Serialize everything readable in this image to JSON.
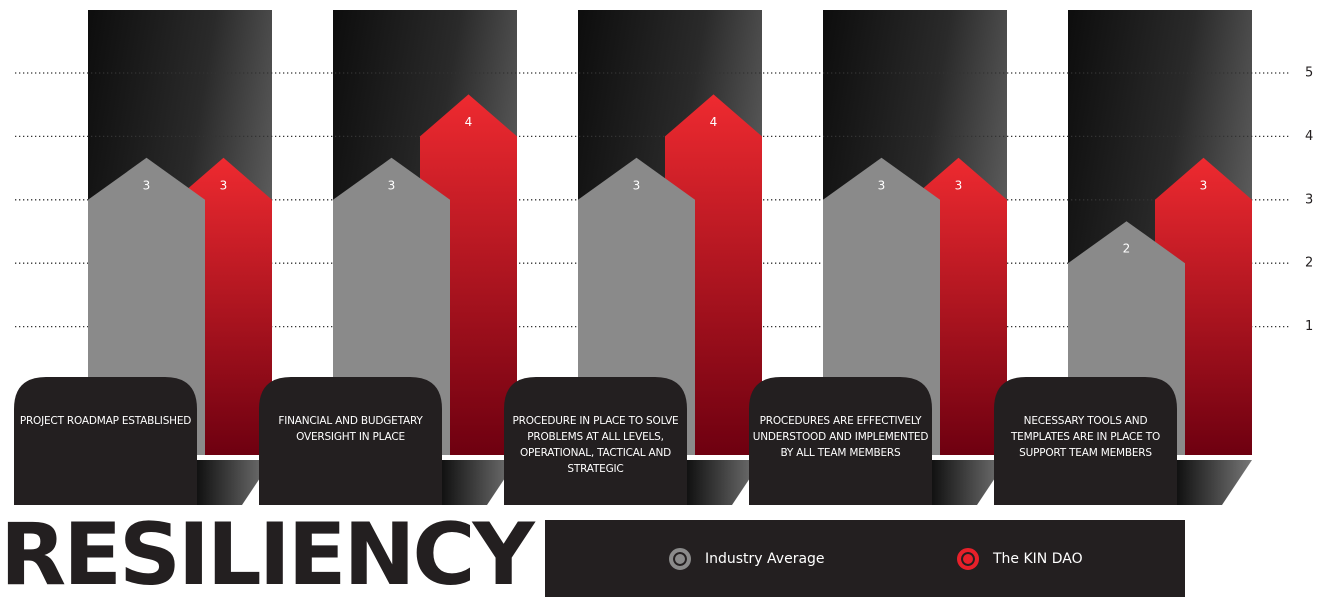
{
  "chart_data": {
    "type": "arrow-bar",
    "title": "RESILIENCY",
    "categories": [
      "PROJECT ROADMAP ESTABLISHED",
      "FINANCIAL AND BUDGETARY OVERSIGHT IN PLACE",
      "PROCEDURE IN PLACE TO SOLVE PROBLEMS AT ALL LEVELS, OPERATIONAL, TACTICAL AND STRATEGIC",
      "PROCEDURES ARE EFFECTIVELY UNDERSTOOD AND IMPLEMENTED BY ALL TEAM MEMBERS",
      "NECESSARY TOOLS AND TEMPLATES ARE IN PLACE TO SUPPORT TEAM MEMBERS"
    ],
    "series": [
      {
        "name": "Industry Average",
        "color": "#8a8a8a",
        "values": [
          3,
          3,
          3,
          3,
          2
        ]
      },
      {
        "name": "The KIN DAO",
        "color": "#e8202a",
        "values": [
          3,
          4,
          4,
          3,
          3
        ]
      }
    ],
    "ylim": [
      0,
      5
    ],
    "yticks": [
      1,
      2,
      3,
      4,
      5
    ],
    "grid": true
  }
}
